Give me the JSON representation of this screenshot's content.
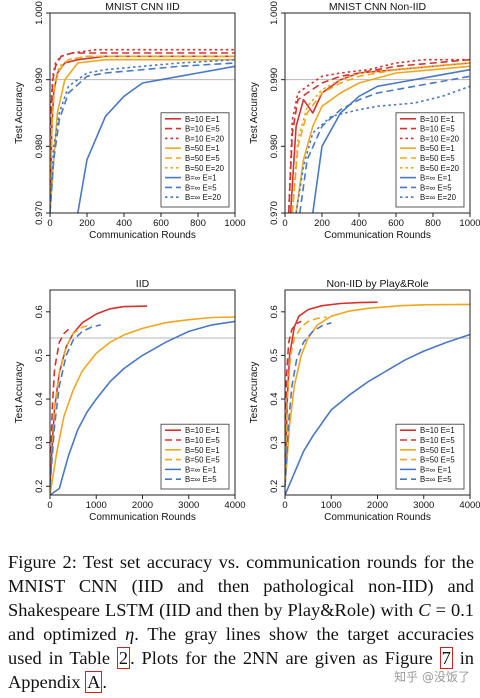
{
  "colors": {
    "red": "#d2332f",
    "orange": "#f0a71f",
    "blue": "#4a78c2",
    "target": "#b5b5b5",
    "axis": "#222222",
    "legend_border": "#333333"
  },
  "chart_data": [
    {
      "type": "line",
      "title": "MNIST CNN IID",
      "xlabel": "Communication Rounds",
      "ylabel": "Test Accuracy",
      "xlim": [
        0,
        1000
      ],
      "ylim": [
        0.97,
        1.0
      ],
      "xticks": [
        "0",
        "200",
        "400",
        "600",
        "800",
        "1000"
      ],
      "yticks": [
        "0.970",
        "0.980",
        "0.990",
        "1.000"
      ],
      "target_line": 0.99,
      "legend": "bottom-right",
      "series": [
        {
          "name": "B=10 E=1",
          "color": "red",
          "dash": "solid",
          "x": [
            0,
            10,
            20,
            40,
            80,
            150,
            300,
            500,
            700,
            1000
          ],
          "y": [
            0.97,
            0.983,
            0.988,
            0.991,
            0.9925,
            0.993,
            0.9935,
            0.9935,
            0.9935,
            0.9935
          ]
        },
        {
          "name": "B=10 E=5",
          "color": "red",
          "dash": "dashed",
          "x": [
            0,
            5,
            15,
            30,
            60,
            120,
            250,
            500,
            1000
          ],
          "y": [
            0.97,
            0.985,
            0.99,
            0.992,
            0.9935,
            0.994,
            0.994,
            0.994,
            0.994
          ]
        },
        {
          "name": "B=10 E=20",
          "color": "red",
          "dash": "dotted",
          "x": [
            0,
            5,
            15,
            30,
            60,
            120,
            250,
            500,
            1000
          ],
          "y": [
            0.97,
            0.986,
            0.9905,
            0.9925,
            0.9935,
            0.994,
            0.9945,
            0.9945,
            0.9945
          ]
        },
        {
          "name": "B=50 E=1",
          "color": "orange",
          "dash": "solid",
          "x": [
            0,
            20,
            40,
            80,
            150,
            300,
            500,
            1000
          ],
          "y": [
            0.97,
            0.978,
            0.985,
            0.99,
            0.9925,
            0.993,
            0.993,
            0.993
          ]
        },
        {
          "name": "B=50 E=5",
          "color": "orange",
          "dash": "dashed",
          "x": [
            0,
            10,
            25,
            50,
            100,
            200,
            400,
            1000
          ],
          "y": [
            0.97,
            0.983,
            0.989,
            0.9915,
            0.993,
            0.9935,
            0.9935,
            0.9935
          ]
        },
        {
          "name": "B=50 E=20",
          "color": "orange",
          "dash": "dotted",
          "x": [
            0,
            10,
            25,
            50,
            100,
            200,
            400,
            1000
          ],
          "y": [
            0.97,
            0.984,
            0.9895,
            0.992,
            0.993,
            0.9935,
            0.9935,
            0.9935
          ]
        },
        {
          "name": "B=∞ E=1",
          "color": "blue",
          "dash": "solid",
          "x": [
            150,
            200,
            300,
            400,
            500,
            600,
            700,
            800,
            900,
            1000
          ],
          "y": [
            0.97,
            0.978,
            0.9845,
            0.9875,
            0.9895,
            0.99,
            0.9905,
            0.991,
            0.9915,
            0.992
          ]
        },
        {
          "name": "B=∞ E=5",
          "color": "blue",
          "dash": "dashed",
          "x": [
            0,
            20,
            50,
            100,
            200,
            300,
            500,
            700,
            1000
          ],
          "y": [
            0.97,
            0.978,
            0.984,
            0.988,
            0.9905,
            0.991,
            0.9915,
            0.992,
            0.9925
          ]
        },
        {
          "name": "B=∞ E=20",
          "color": "blue",
          "dash": "dotted",
          "x": [
            0,
            20,
            50,
            100,
            200,
            300,
            500,
            700,
            1000
          ],
          "y": [
            0.97,
            0.98,
            0.985,
            0.989,
            0.991,
            0.9915,
            0.992,
            0.9925,
            0.993
          ]
        }
      ]
    },
    {
      "type": "line",
      "title": "MNIST CNN Non-IID",
      "xlabel": "Communication Rounds",
      "ylabel": "Test Accuracy",
      "xlim": [
        0,
        1000
      ],
      "ylim": [
        0.97,
        1.0
      ],
      "xticks": [
        "0",
        "200",
        "400",
        "600",
        "800",
        "1000"
      ],
      "yticks": [
        "0.970",
        "0.980",
        "0.990",
        "1.000"
      ],
      "target_line": 0.99,
      "legend": "bottom-right",
      "series": [
        {
          "name": "B=10 E=1",
          "color": "red",
          "dash": "solid",
          "x": [
            30,
            60,
            100,
            150,
            200,
            300,
            400,
            600,
            800,
            1000
          ],
          "y": [
            0.97,
            0.983,
            0.987,
            0.985,
            0.988,
            0.99,
            0.991,
            0.9915,
            0.992,
            0.9925
          ]
        },
        {
          "name": "B=10 E=5",
          "color": "red",
          "dash": "dashed",
          "x": [
            20,
            40,
            70,
            120,
            200,
            300,
            400,
            600,
            800,
            1000
          ],
          "y": [
            0.97,
            0.982,
            0.987,
            0.988,
            0.9895,
            0.9905,
            0.991,
            0.992,
            0.9925,
            0.993
          ]
        },
        {
          "name": "B=10 E=20",
          "color": "red",
          "dash": "dotted",
          "x": [
            20,
            40,
            70,
            120,
            200,
            300,
            450,
            600,
            750,
            1000
          ],
          "y": [
            0.97,
            0.984,
            0.988,
            0.989,
            0.9905,
            0.991,
            0.9915,
            0.9925,
            0.993,
            0.993
          ]
        },
        {
          "name": "B=50 E=1",
          "color": "orange",
          "dash": "solid",
          "x": [
            60,
            100,
            150,
            200,
            300,
            400,
            600,
            800,
            1000
          ],
          "y": [
            0.97,
            0.978,
            0.983,
            0.986,
            0.988,
            0.9895,
            0.991,
            0.9915,
            0.992
          ]
        },
        {
          "name": "B=50 E=5",
          "color": "orange",
          "dash": "dashed",
          "x": [
            40,
            70,
            120,
            200,
            300,
            400,
            600,
            800,
            1000
          ],
          "y": [
            0.97,
            0.98,
            0.985,
            0.988,
            0.9895,
            0.9905,
            0.9915,
            0.992,
            0.9925
          ]
        },
        {
          "name": "B=50 E=20",
          "color": "orange",
          "dash": "dotted",
          "x": [
            40,
            70,
            120,
            200,
            300,
            400,
            600,
            800,
            1000
          ],
          "y": [
            0.97,
            0.981,
            0.986,
            0.9885,
            0.99,
            0.991,
            0.9915,
            0.992,
            0.9925
          ]
        },
        {
          "name": "B=∞ E=1",
          "color": "blue",
          "dash": "solid",
          "x": [
            150,
            200,
            300,
            400,
            500,
            600,
            800,
            1000
          ],
          "y": [
            0.97,
            0.98,
            0.985,
            0.9875,
            0.989,
            0.9895,
            0.9905,
            0.9915
          ]
        },
        {
          "name": "B=∞ E=5",
          "color": "blue",
          "dash": "dashed",
          "x": [
            80,
            120,
            200,
            300,
            400,
            500,
            700,
            1000
          ],
          "y": [
            0.97,
            0.978,
            0.983,
            0.9855,
            0.987,
            0.988,
            0.989,
            0.9905
          ]
        },
        {
          "name": "B=∞ E=20",
          "color": "blue",
          "dash": "dotted",
          "x": [
            60,
            100,
            150,
            250,
            400,
            500,
            700,
            850,
            1000
          ],
          "y": [
            0.97,
            0.977,
            0.982,
            0.9845,
            0.9855,
            0.986,
            0.9865,
            0.9875,
            0.989
          ]
        }
      ]
    },
    {
      "type": "line",
      "title": "IID",
      "xlabel": "Communication Rounds",
      "ylabel": "Test Accuracy",
      "xlim": [
        0,
        4000
      ],
      "ylim": [
        0.18,
        0.65
      ],
      "xticks": [
        "0",
        "1000",
        "2000",
        "3000",
        "4000"
      ],
      "yticks": [
        "0.2",
        "0.3",
        "0.4",
        "0.5",
        "0.6"
      ],
      "target_line": 0.54,
      "legend": "bottom-right",
      "series": [
        {
          "name": "B=10 E=1",
          "color": "red",
          "dash": "solid",
          "x": [
            0,
            50,
            100,
            200,
            350,
            500,
            700,
            1000,
            1300,
            1600,
            2100
          ],
          "y": [
            0.2,
            0.3,
            0.38,
            0.46,
            0.52,
            0.55,
            0.575,
            0.595,
            0.607,
            0.612,
            0.613
          ]
        },
        {
          "name": "B=10 E=5",
          "color": "red",
          "dash": "dashed",
          "x": [
            0,
            50,
            100,
            200,
            300,
            400
          ],
          "y": [
            0.2,
            0.38,
            0.47,
            0.53,
            0.55,
            0.56
          ]
        },
        {
          "name": "B=50 E=1",
          "color": "orange",
          "dash": "solid",
          "x": [
            0,
            150,
            300,
            500,
            700,
            1000,
            1300,
            1600,
            2000,
            2500,
            3000,
            3500,
            4000
          ],
          "y": [
            0.18,
            0.28,
            0.36,
            0.42,
            0.465,
            0.505,
            0.53,
            0.547,
            0.562,
            0.575,
            0.582,
            0.587,
            0.588
          ]
        },
        {
          "name": "B=50 E=5",
          "color": "orange",
          "dash": "dashed",
          "x": [
            0,
            100,
            200,
            350,
            500,
            700,
            900
          ],
          "y": [
            0.2,
            0.38,
            0.46,
            0.52,
            0.55,
            0.565,
            0.57
          ]
        },
        {
          "name": "B=∞ E=1",
          "color": "blue",
          "dash": "solid",
          "x": [
            0,
            200,
            400,
            600,
            800,
            1000,
            1300,
            1600,
            2000,
            2500,
            3000,
            3500,
            4000
          ],
          "y": [
            0.18,
            0.195,
            0.27,
            0.33,
            0.37,
            0.4,
            0.44,
            0.47,
            0.5,
            0.53,
            0.555,
            0.57,
            0.578
          ]
        },
        {
          "name": "B=∞ E=5",
          "color": "blue",
          "dash": "dashed",
          "x": [
            0,
            100,
            200,
            350,
            500,
            700,
            900,
            1100
          ],
          "y": [
            0.2,
            0.34,
            0.43,
            0.5,
            0.535,
            0.555,
            0.565,
            0.57
          ]
        }
      ]
    },
    {
      "type": "line",
      "title": "Non-IID by Play&Role",
      "xlabel": "Communication Rounds",
      "ylabel": "Test Accuracy",
      "xlim": [
        0,
        4000
      ],
      "ylim": [
        0.18,
        0.65
      ],
      "xticks": [
        "0",
        "1000",
        "2000",
        "3000",
        "4000"
      ],
      "yticks": [
        "0.2",
        "0.3",
        "0.4",
        "0.5",
        "0.6"
      ],
      "target_line": 0.54,
      "legend": "bottom-right",
      "series": [
        {
          "name": "B=10 E=1",
          "color": "red",
          "dash": "solid",
          "x": [
            0,
            50,
            100,
            200,
            300,
            500,
            800,
            1200,
            1600,
            2000
          ],
          "y": [
            0.2,
            0.4,
            0.5,
            0.565,
            0.59,
            0.605,
            0.614,
            0.619,
            0.621,
            0.622
          ]
        },
        {
          "name": "B=10 E=5",
          "color": "red",
          "dash": "dashed",
          "x": [
            0,
            30,
            80,
            150,
            250,
            350
          ],
          "y": [
            0.2,
            0.45,
            0.53,
            0.56,
            0.573,
            0.578
          ]
        },
        {
          "name": "B=50 E=1",
          "color": "orange",
          "dash": "solid",
          "x": [
            0,
            100,
            200,
            350,
            500,
            700,
            1000,
            1400,
            1800,
            2500,
            3000,
            4000
          ],
          "y": [
            0.2,
            0.34,
            0.43,
            0.5,
            0.54,
            0.57,
            0.59,
            0.602,
            0.608,
            0.614,
            0.616,
            0.617
          ]
        },
        {
          "name": "B=50 E=5",
          "color": "orange",
          "dash": "dashed",
          "x": [
            0,
            50,
            120,
            200,
            350,
            500,
            700,
            900
          ],
          "y": [
            0.2,
            0.4,
            0.5,
            0.54,
            0.565,
            0.578,
            0.585,
            0.588
          ]
        },
        {
          "name": "B=∞ E=1",
          "color": "blue",
          "dash": "solid",
          "x": [
            0,
            200,
            400,
            600,
            800,
            1000,
            1400,
            1800,
            2200,
            2600,
            3000,
            3500,
            4000
          ],
          "y": [
            0.18,
            0.23,
            0.28,
            0.315,
            0.345,
            0.375,
            0.41,
            0.44,
            0.465,
            0.49,
            0.51,
            0.53,
            0.548
          ]
        },
        {
          "name": "B=∞ E=5",
          "color": "blue",
          "dash": "dashed",
          "x": [
            0,
            80,
            150,
            250,
            400,
            600,
            800,
            1000
          ],
          "y": [
            0.2,
            0.35,
            0.43,
            0.49,
            0.53,
            0.555,
            0.568,
            0.575
          ]
        }
      ]
    }
  ],
  "caption": {
    "label": "Figure 2:",
    "text_a": " Test set accuracy vs. communication rounds for the MNIST CNN (IID and then pathological non-IID) and Shakespeare LSTM (IID and then by Play&Role) with ",
    "c_symbol": "C",
    "text_b": " = 0.1 and optimized ",
    "eta_symbol": "η",
    "text_c": ". The gray lines show the target accuracies used in Table ",
    "table_ref": "2",
    "text_d": ". Plots for the 2NN are given as Figure ",
    "figure_ref": "7",
    "text_e": " in Appendix ",
    "appendix_ref": "A",
    "text_f": "."
  },
  "watermark": "知乎 @没饭了"
}
